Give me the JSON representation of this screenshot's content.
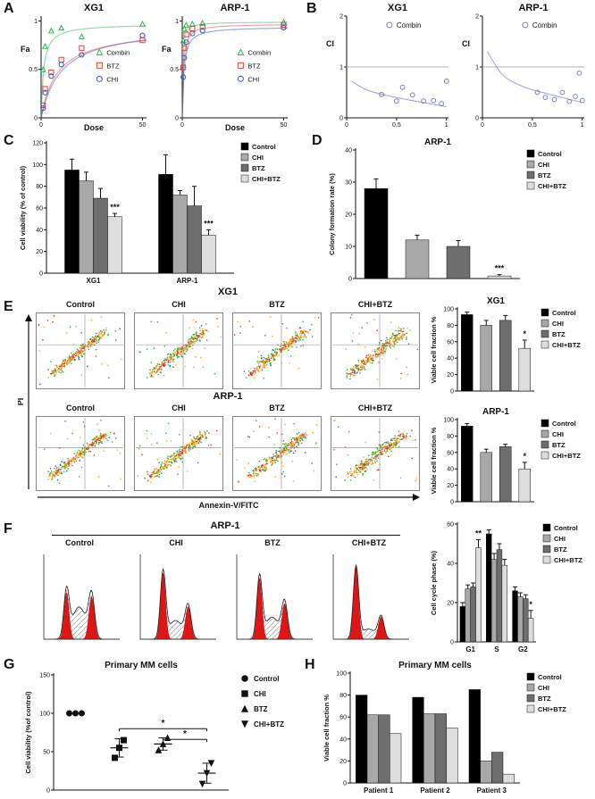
{
  "labels": {
    "A": "A",
    "B": "B",
    "C": "C",
    "D": "D",
    "E": "E",
    "F": "F",
    "G": "G",
    "H": "H"
  },
  "series_names": [
    "Control",
    "CHI",
    "BTZ",
    "CHI+BTZ"
  ],
  "colors": {
    "control": "#000000",
    "chi": "#a8a8a8",
    "btz": "#6e6e6e",
    "chi_btz": "#dddddd",
    "combin_green": "#2db84d",
    "btz_red": "#e8413c",
    "chi_blue": "#3a56c4",
    "ci_marker": "#7a7fd8"
  },
  "flow": {
    "row_titles": [
      "XG1",
      "ARP-1"
    ],
    "columns": [
      "Control",
      "CHI",
      "BTZ",
      "CHI+BTZ"
    ],
    "ylabel": "PI",
    "xlabel": "Annexin-V/FITC"
  },
  "cycle": {
    "title": "ARP-1",
    "columns": [
      "Control",
      "CHI",
      "BTZ",
      "CHI+BTZ"
    ],
    "plots": [
      {
        "g1": 0.55,
        "s": 0.38,
        "g2": 0.5
      },
      {
        "g1": 0.78,
        "s": 0.22,
        "g2": 0.38
      },
      {
        "g1": 0.72,
        "s": 0.26,
        "g2": 0.42
      },
      {
        "g1": 0.85,
        "s": 0.12,
        "g2": 0.26
      }
    ]
  },
  "chart_data": [
    {
      "id": "A_XG1",
      "type": "line",
      "title": "XG1",
      "xlabel": "Dose",
      "ylabel": "Fa",
      "xlim": [
        0,
        52
      ],
      "ylim": [
        0,
        1.05
      ],
      "xticks": [
        0,
        50
      ],
      "yticks": [
        0,
        0.5,
        1
      ],
      "series": [
        {
          "name": "Combin",
          "marker": "triangle",
          "color": "#2db84d",
          "hill": {
            "vmax": 0.97,
            "k": 1.2
          },
          "points": [
            [
              1,
              0.5
            ],
            [
              2,
              0.74
            ],
            [
              5,
              0.9
            ],
            [
              10,
              0.93
            ],
            [
              20,
              0.84
            ],
            [
              50,
              0.97
            ]
          ]
        },
        {
          "name": "BTZ",
          "marker": "square",
          "color": "#e8413c",
          "hill": {
            "vmax": 0.92,
            "k": 8
          },
          "points": [
            [
              1,
              0.13
            ],
            [
              2,
              0.3
            ],
            [
              5,
              0.47
            ],
            [
              10,
              0.6
            ],
            [
              20,
              0.72
            ],
            [
              50,
              0.8
            ]
          ]
        },
        {
          "name": "CHI",
          "marker": "circle",
          "color": "#3a56c4",
          "hill": {
            "vmax": 0.96,
            "k": 10
          },
          "points": [
            [
              1,
              0.1
            ],
            [
              2,
              0.26
            ],
            [
              5,
              0.43
            ],
            [
              10,
              0.55
            ],
            [
              20,
              0.65
            ],
            [
              50,
              0.85
            ]
          ]
        }
      ]
    },
    {
      "id": "A_ARP1",
      "type": "line",
      "title": "ARP-1",
      "xlabel": "Dose",
      "ylabel": "Fa",
      "xlim": [
        0,
        52
      ],
      "ylim": [
        0,
        1.05
      ],
      "xticks": [
        0,
        50
      ],
      "yticks": [
        0,
        0.5,
        1
      ],
      "series": [
        {
          "name": "Combin",
          "marker": "triangle",
          "color": "#2db84d",
          "hill": {
            "vmax": 0.99,
            "k": 0.25
          },
          "points": [
            [
              0.5,
              0.8
            ],
            [
              1,
              0.92
            ],
            [
              2,
              0.96
            ],
            [
              5,
              0.97
            ],
            [
              10,
              0.98
            ],
            [
              50,
              0.99
            ]
          ]
        },
        {
          "name": "BTZ",
          "marker": "square",
          "color": "#e8413c",
          "hill": {
            "vmax": 0.97,
            "k": 0.55
          },
          "points": [
            [
              0.5,
              0.52
            ],
            [
              1,
              0.72
            ],
            [
              2,
              0.86
            ],
            [
              5,
              0.92
            ],
            [
              10,
              0.94
            ],
            [
              50,
              0.96
            ]
          ]
        },
        {
          "name": "CHI",
          "marker": "circle",
          "color": "#3a56c4",
          "hill": {
            "vmax": 0.94,
            "k": 0.8
          },
          "points": [
            [
              0.5,
              0.42
            ],
            [
              1,
              0.62
            ],
            [
              2,
              0.78
            ],
            [
              5,
              0.87
            ],
            [
              10,
              0.9
            ],
            [
              50,
              0.93
            ]
          ]
        }
      ]
    },
    {
      "id": "B_XG1",
      "type": "scatter",
      "title": "XG1",
      "ylabel": "CI",
      "xlim": [
        0,
        1.02
      ],
      "ylim": [
        0,
        2
      ],
      "xticks": [
        0,
        0.5,
        1
      ],
      "yticks": [
        0,
        1,
        2
      ],
      "refline": 1,
      "marker_color": "#7a7fd8",
      "legend_label": "Combin",
      "curve": [
        [
          0.05,
          0.72
        ],
        [
          0.2,
          0.55
        ],
        [
          0.4,
          0.44
        ],
        [
          0.6,
          0.36
        ],
        [
          0.8,
          0.29
        ],
        [
          1,
          0.22
        ]
      ],
      "points": [
        [
          0.35,
          0.46
        ],
        [
          0.5,
          0.33
        ],
        [
          0.56,
          0.6
        ],
        [
          0.66,
          0.45
        ],
        [
          0.77,
          0.33
        ],
        [
          0.87,
          0.34
        ],
        [
          0.95,
          0.28
        ],
        [
          1.0,
          0.72
        ]
      ]
    },
    {
      "id": "B_ARP1",
      "type": "scatter",
      "title": "ARP-1",
      "ylabel": "CI",
      "xlim": [
        0,
        1.02
      ],
      "ylim": [
        0,
        2
      ],
      "xticks": [
        0,
        0.5,
        1
      ],
      "yticks": [
        0,
        1,
        2
      ],
      "refline": 1,
      "marker_color": "#7a7fd8",
      "legend_label": "Combin",
      "curve": [
        [
          0.05,
          1.3
        ],
        [
          0.2,
          0.85
        ],
        [
          0.4,
          0.62
        ],
        [
          0.6,
          0.5
        ],
        [
          0.8,
          0.4
        ],
        [
          1,
          0.3
        ]
      ],
      "points": [
        [
          0.55,
          0.5
        ],
        [
          0.63,
          0.4
        ],
        [
          0.72,
          0.36
        ],
        [
          0.8,
          0.5
        ],
        [
          0.87,
          0.32
        ],
        [
          0.93,
          0.42
        ],
        [
          0.97,
          0.88
        ],
        [
          1.0,
          0.34
        ]
      ]
    },
    {
      "id": "C",
      "type": "bar",
      "ylabel": "Cell viability (% of control)",
      "categories": [
        "XG1",
        "ARP-1"
      ],
      "ylim": [
        0,
        120
      ],
      "yticks": [
        0,
        20,
        40,
        60,
        80,
        100,
        120
      ],
      "ml": 36,
      "mr": 80,
      "barMax": 16,
      "mb": 16,
      "series": [
        {
          "name": "Control",
          "color": "#000000",
          "values": [
            95,
            91
          ],
          "errors": [
            10,
            18
          ]
        },
        {
          "name": "CHI",
          "color": "#a8a8a8",
          "values": [
            85,
            72
          ],
          "errors": [
            8,
            4
          ]
        },
        {
          "name": "BTZ",
          "color": "#6e6e6e",
          "values": [
            69,
            62
          ],
          "errors": [
            9,
            18
          ]
        },
        {
          "name": "CHI+BTZ",
          "color": "#dddddd",
          "values": [
            52,
            35
          ],
          "errors": [
            3,
            5
          ]
        }
      ],
      "annotations": [
        {
          "cat": 0,
          "series": 3,
          "text": "***"
        },
        {
          "cat": 1,
          "series": 3,
          "text": "***"
        }
      ],
      "legend": true
    },
    {
      "id": "D",
      "type": "bar",
      "title": "ARP-1",
      "ylabel": "Colony formation rate (%)",
      "categories": [
        ""
      ],
      "ylim": [
        0,
        40
      ],
      "yticks": [
        0,
        10,
        20,
        30,
        40
      ],
      "ml": 34,
      "mr": 80,
      "barMax": 26,
      "mb": 10,
      "series": [
        {
          "name": "Control",
          "color": "#000000",
          "values": [
            28
          ],
          "errors": [
            3
          ]
        },
        {
          "name": "CHI",
          "color": "#a8a8a8",
          "values": [
            12
          ],
          "errors": [
            1.5
          ]
        },
        {
          "name": "BTZ",
          "color": "#6e6e6e",
          "values": [
            10
          ],
          "errors": [
            1.8
          ]
        },
        {
          "name": "CHI+BTZ",
          "color": "#dddddd",
          "values": [
            0.8
          ],
          "errors": [
            0.4
          ]
        }
      ],
      "annotations": [
        {
          "cat": 0,
          "series": 3,
          "text": "***"
        }
      ],
      "legend": true
    },
    {
      "id": "E_XG1",
      "type": "bar",
      "title": "XG1",
      "ylabel": "Viable cell fraction %",
      "categories": [
        ""
      ],
      "ylim": [
        0,
        100
      ],
      "yticks": [
        0,
        20,
        40,
        60,
        80,
        100
      ],
      "ml": 34,
      "mr": 64,
      "barMax": 15,
      "mb": 8,
      "series": [
        {
          "name": "Control",
          "color": "#000000",
          "values": [
            93
          ],
          "errors": [
            3
          ]
        },
        {
          "name": "CHI",
          "color": "#a8a8a8",
          "values": [
            80
          ],
          "errors": [
            6
          ]
        },
        {
          "name": "BTZ",
          "color": "#6e6e6e",
          "values": [
            86
          ],
          "errors": [
            6
          ]
        },
        {
          "name": "CHI+BTZ",
          "color": "#dddddd",
          "values": [
            52
          ],
          "errors": [
            10
          ]
        }
      ],
      "annotations": [
        {
          "cat": 0,
          "series": 3,
          "text": "*"
        }
      ],
      "legend": true
    },
    {
      "id": "E_ARP1",
      "type": "bar",
      "title": "ARP-1",
      "ylabel": "Viable cell fraction %",
      "categories": [
        ""
      ],
      "ylim": [
        0,
        100
      ],
      "yticks": [
        0,
        20,
        40,
        60,
        80,
        100
      ],
      "ml": 34,
      "mr": 64,
      "barMax": 15,
      "mb": 8,
      "series": [
        {
          "name": "Control",
          "color": "#000000",
          "values": [
            92
          ],
          "errors": [
            3
          ]
        },
        {
          "name": "CHI",
          "color": "#a8a8a8",
          "values": [
            60
          ],
          "errors": [
            4
          ]
        },
        {
          "name": "BTZ",
          "color": "#6e6e6e",
          "values": [
            67
          ],
          "errors": [
            3
          ]
        },
        {
          "name": "CHI+BTZ",
          "color": "#dddddd",
          "values": [
            40
          ],
          "errors": [
            8
          ]
        }
      ],
      "annotations": [
        {
          "cat": 0,
          "series": 3,
          "text": "*"
        }
      ],
      "legend": true
    },
    {
      "id": "F_bars",
      "type": "bar",
      "ylabel": "Cell cycle phase (%)",
      "categories": [
        "G1",
        "S",
        "G2"
      ],
      "ylim": [
        0,
        60
      ],
      "yticks": [
        0,
        20,
        40,
        60
      ],
      "ml": 34,
      "mr": 62,
      "barMax": 9,
      "mb": 16,
      "series": [
        {
          "name": "Control",
          "color": "#000000",
          "values": [
            18,
            55,
            26
          ],
          "errors": [
            2,
            2,
            2
          ]
        },
        {
          "name": "CHI",
          "color": "#a8a8a8",
          "values": [
            27,
            42,
            23
          ],
          "errors": [
            2,
            3,
            2
          ]
        },
        {
          "name": "BTZ",
          "color": "#6e6e6e",
          "values": [
            28,
            47,
            22
          ],
          "errors": [
            2,
            3,
            2
          ]
        },
        {
          "name": "CHI+BTZ",
          "color": "#dddddd",
          "values": [
            48,
            39,
            12
          ],
          "errors": [
            4,
            3,
            4
          ]
        }
      ],
      "annotations": [
        {
          "cat": 0,
          "series": 3,
          "text": "**"
        },
        {
          "cat": 2,
          "series": 3,
          "text": "*"
        }
      ],
      "legend": true
    },
    {
      "id": "G",
      "type": "dot",
      "title": "Primary MM cells",
      "ylabel": "Cell viability (%of control)",
      "ylim": [
        0,
        150
      ],
      "yticks": [
        0,
        50,
        100,
        150
      ],
      "groups": [
        {
          "name": "Control",
          "marker": "circle",
          "points": [
            100,
            100,
            100
          ],
          "mean": 100
        },
        {
          "name": "CHI",
          "marker": "square",
          "points": [
            42,
            55,
            65
          ],
          "mean": 55,
          "err": 12
        },
        {
          "name": "BTZ",
          "marker": "triangle",
          "points": [
            52,
            60,
            68
          ],
          "mean": 60,
          "err": 8
        },
        {
          "name": "CHI+BTZ",
          "marker": "triangle-down",
          "points": [
            8,
            22,
            35
          ],
          "mean": 22,
          "err": 13
        }
      ],
      "brackets": [
        {
          "from": 1,
          "to": 3,
          "y": 80,
          "label": "*"
        },
        {
          "from": 2,
          "to": 3,
          "y": 66,
          "label": "*"
        }
      ],
      "legend": true
    },
    {
      "id": "H",
      "type": "bar",
      "title": "Primary MM cells",
      "ylabel": "Viable cell fraction %",
      "categories": [
        "Patient 1",
        "Patient 2",
        "Patient 3"
      ],
      "ylim": [
        0,
        100
      ],
      "yticks": [
        0,
        20,
        40,
        60,
        80,
        100
      ],
      "ml": 36,
      "mr": 80,
      "barMax": 13,
      "mb": 16,
      "series": [
        {
          "name": "Control",
          "color": "#000000",
          "values": [
            80,
            78,
            85
          ]
        },
        {
          "name": "CHI",
          "color": "#a8a8a8",
          "values": [
            62,
            63,
            20
          ]
        },
        {
          "name": "BTZ",
          "color": "#6e6e6e",
          "values": [
            62,
            63,
            28
          ]
        },
        {
          "name": "CHI+BTZ",
          "color": "#dddddd",
          "values": [
            45,
            50,
            8
          ]
        }
      ],
      "legend": true
    }
  ]
}
